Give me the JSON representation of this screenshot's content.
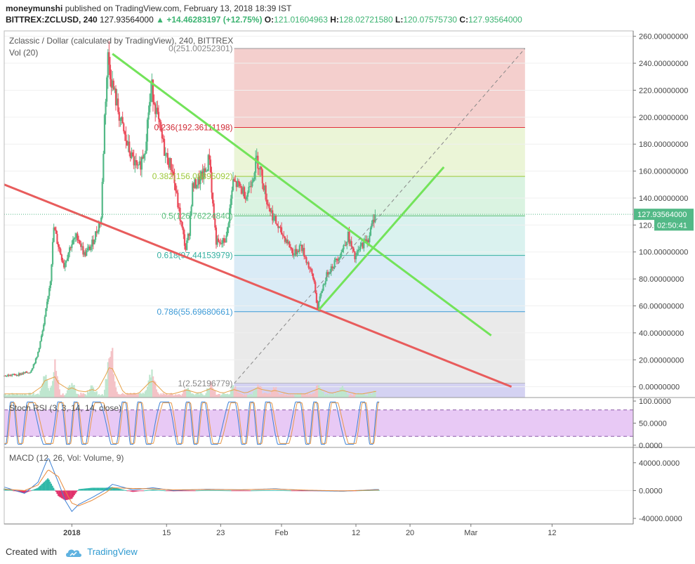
{
  "header": {
    "author": "moneymunshi",
    "published_text": "published on TradingView.com, February 13, 2018 18:39 IST",
    "symbol": "BITTREX:ZCLUSD, 240",
    "last": "127.93564000",
    "change": "▲ +14.46283197 (+12.75%)",
    "o_label": "O:",
    "o_value": "121.01604963",
    "h_label": "H:",
    "h_value": "128.02721580",
    "l_label": "L:",
    "l_value": "120.07575730",
    "c_label": "C:",
    "c_value": "127.93564000"
  },
  "footer": {
    "created_with": "Created with",
    "brand": "TradingView"
  },
  "colors": {
    "bull": "#53b987",
    "bear": "#eb4d5c",
    "green_line": "#73e35a",
    "red_line": "#e85c5c",
    "fib_red": "#f2c7c4",
    "fib_yellow": "#e8f3d0",
    "fib_green": "#d4f1dc",
    "fib_teal": "#d4f0ec",
    "fib_blue": "#d3e8f5",
    "fib_gray": "#e6e6e6",
    "stoch_band": "#e8c9f5",
    "price_tag": "#53b987"
  },
  "chart_data": [
    {
      "type": "candlestick",
      "title": "Zclassic / Dollar (calculated by TradingView), 240, BITTREX",
      "volume_label": "Vol (20)",
      "y_axis_ticks": [
        "260.00000000",
        "240.00000000",
        "220.00000000",
        "200.00000000",
        "180.00000000",
        "160.00000000",
        "140.00000000",
        "120.00000000",
        "100.00000000",
        "80.00000000",
        "60.00000000",
        "40.00000000",
        "20.00000000",
        "0.00000000"
      ],
      "y_tick_values": [
        260,
        240,
        220,
        200,
        180,
        160,
        140,
        120,
        100,
        80,
        60,
        40,
        20,
        0
      ],
      "ylim": [
        -8,
        264
      ],
      "x_ticks": [
        "2018",
        "15",
        "23",
        "Feb",
        "12",
        "20",
        "Mar",
        "12"
      ],
      "x_tick_days": [
        0,
        14,
        22,
        31,
        42,
        50,
        59,
        71
      ],
      "x_range_days": [
        -10,
        83
      ],
      "last_price_tag": "127.93564000",
      "last_price": 127.93564,
      "countdown_tag": "02:50:41",
      "countdown_price": 120,
      "fibonacci": {
        "start_day": 24,
        "end_day": 67,
        "levels": [
          {
            "ratio": 0,
            "label": "0(251.00252301)",
            "price": 251.00252301
          },
          {
            "ratio": 0.236,
            "label": "0.236(192.36111198)",
            "price": 192.36111198
          },
          {
            "ratio": 0.382,
            "label": "0.382(156.08895092)",
            "price": 156.08895092
          },
          {
            "ratio": 0.5,
            "label": "0.5(126.76224840)",
            "price": 126.7622484
          },
          {
            "ratio": 0.618,
            "label": "0.618(97.44153979)",
            "price": 97.44153979
          },
          {
            "ratio": 0.786,
            "label": "0.786(55.69680661)",
            "price": 55.69680661
          },
          {
            "ratio": 1,
            "label": "1(2.52196779)",
            "price": 2.52196779
          }
        ]
      },
      "trendlines": [
        {
          "name": "green-downtrend",
          "from": [
            6,
            247
          ],
          "to": [
            62,
            38
          ]
        },
        {
          "name": "red-downtrend",
          "from": [
            -10,
            150
          ],
          "to": [
            65,
            0
          ]
        },
        {
          "name": "green-uptrend",
          "from": [
            36.5,
            57
          ],
          "to": [
            55,
            163
          ]
        },
        {
          "name": "dashed-diagonal",
          "from": [
            24,
            2.5
          ],
          "to": [
            67,
            251
          ]
        }
      ],
      "price_path": [
        [
          -10,
          8
        ],
        [
          -8,
          9
        ],
        [
          -6,
          11
        ],
        [
          -5,
          22
        ],
        [
          -4,
          45
        ],
        [
          -3,
          80
        ],
        [
          -2.5,
          118
        ],
        [
          -2,
          108
        ],
        [
          -1,
          90
        ],
        [
          0,
          105
        ],
        [
          1,
          112
        ],
        [
          2,
          98
        ],
        [
          3,
          104
        ],
        [
          4,
          118
        ],
        [
          4.5,
          125
        ],
        [
          5,
          200
        ],
        [
          5.5,
          245
        ],
        [
          6,
          228
        ],
        [
          7,
          205
        ],
        [
          8,
          185
        ],
        [
          9,
          170
        ],
        [
          10,
          160
        ],
        [
          11,
          178
        ],
        [
          11.5,
          205
        ],
        [
          12,
          222
        ],
        [
          13,
          195
        ],
        [
          14,
          172
        ],
        [
          15,
          162
        ],
        [
          16,
          130
        ],
        [
          17,
          102
        ],
        [
          17.5,
          115
        ],
        [
          18,
          148
        ],
        [
          19,
          153
        ],
        [
          20,
          160
        ],
        [
          20.5,
          172
        ],
        [
          21,
          135
        ],
        [
          21.5,
          108
        ],
        [
          22,
          105
        ],
        [
          23,
          110
        ],
        [
          24,
          152
        ],
        [
          25,
          148
        ],
        [
          26,
          142
        ],
        [
          27,
          158
        ],
        [
          27.5,
          169
        ],
        [
          28,
          162
        ],
        [
          29,
          138
        ],
        [
          30,
          125
        ],
        [
          31,
          115
        ],
        [
          32,
          108
        ],
        [
          33,
          98
        ],
        [
          34,
          105
        ],
        [
          35,
          92
        ],
        [
          36,
          78
        ],
        [
          36.5,
          57
        ],
        [
          37,
          70
        ],
        [
          38,
          85
        ],
        [
          39,
          92
        ],
        [
          40,
          100
        ],
        [
          41,
          112
        ],
        [
          42,
          95
        ],
        [
          43,
          105
        ],
        [
          44,
          110
        ],
        [
          45,
          128
        ]
      ],
      "volume_spikes": [
        [
          -4,
          22
        ],
        [
          -2.5,
          34
        ],
        [
          0,
          14
        ],
        [
          3,
          10
        ],
        [
          5.5,
          38
        ],
        [
          6,
          30
        ],
        [
          11.5,
          12
        ],
        [
          12,
          20
        ],
        [
          17,
          9
        ],
        [
          20.5,
          12
        ],
        [
          24,
          10
        ],
        [
          27.5,
          14
        ],
        [
          30,
          8
        ],
        [
          36.5,
          12
        ],
        [
          40,
          8
        ],
        [
          45,
          6
        ]
      ],
      "volume_max": 40
    },
    {
      "type": "line",
      "title": "Stoch RSI (3, 3, 14, 14, close)",
      "y_axis_ticks": [
        "100.0000",
        "50.0000",
        "0.0000"
      ],
      "y_tick_values": [
        100,
        50,
        0
      ],
      "ylim": [
        -5,
        108
      ],
      "band": [
        20,
        80
      ],
      "cycle_days": 3.2,
      "x_range_days": [
        -10,
        45.5
      ]
    },
    {
      "type": "line",
      "title": "MACD (12, 26, Vol: Volume, 9)",
      "y_axis_ticks": [
        "40000.0000",
        "0.0000",
        "-40000.0000"
      ],
      "y_tick_values": [
        40000,
        0,
        -40000
      ],
      "ylim": [
        -48000,
        62000
      ],
      "macd": [
        [
          -10,
          5000
        ],
        [
          -7,
          -4000
        ],
        [
          -5,
          12000
        ],
        [
          -3.5,
          48000
        ],
        [
          -2,
          12000
        ],
        [
          -1,
          -14000
        ],
        [
          0,
          -30000
        ],
        [
          1,
          -20000
        ],
        [
          3,
          -10000
        ],
        [
          5,
          1000
        ],
        [
          6,
          9000
        ],
        [
          9,
          1000
        ],
        [
          12,
          4000
        ],
        [
          15,
          0
        ],
        [
          20,
          2000
        ],
        [
          25,
          1000
        ],
        [
          30,
          2500
        ],
        [
          35,
          0
        ],
        [
          40,
          -1000
        ],
        [
          45,
          1500
        ]
      ],
      "signal": [
        [
          -10,
          2000
        ],
        [
          -7,
          0
        ],
        [
          -5,
          8000
        ],
        [
          -3.5,
          30000
        ],
        [
          -2,
          20000
        ],
        [
          -1,
          0
        ],
        [
          0,
          -18000
        ],
        [
          1,
          -22000
        ],
        [
          3,
          -14000
        ],
        [
          5,
          -3000
        ],
        [
          6,
          4000
        ],
        [
          9,
          3000
        ],
        [
          12,
          2500
        ],
        [
          15,
          1000
        ],
        [
          20,
          1500
        ],
        [
          25,
          1200
        ],
        [
          30,
          2000
        ],
        [
          35,
          500
        ],
        [
          40,
          -500
        ],
        [
          45,
          800
        ]
      ],
      "x_range_days": [
        -10,
        45.5
      ]
    }
  ]
}
